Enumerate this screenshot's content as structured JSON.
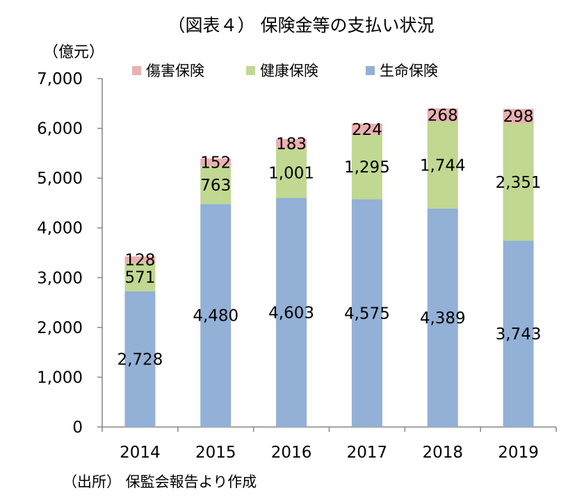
{
  "chart_data": {
    "type": "bar",
    "stacked": true,
    "title": "（図表４） 保険金等の支払い状況",
    "ylabel": "（億元）",
    "source": "（出所） 保監会報告より作成",
    "categories": [
      "2014",
      "2015",
      "2016",
      "2017",
      "2018",
      "2019"
    ],
    "ylim": [
      0,
      7000
    ],
    "yticks": [
      0,
      1000,
      2000,
      3000,
      4000,
      5000,
      6000,
      7000
    ],
    "ytick_labels": [
      "0",
      "1,000",
      "2,000",
      "3,000",
      "4,000",
      "5,000",
      "6,000",
      "7,000"
    ],
    "grid": false,
    "legend_position": "top",
    "series": [
      {
        "name": "生命保険",
        "color": "#93B0D6",
        "values": [
          2728,
          4480,
          4603,
          4575,
          4389,
          3743
        ],
        "labels": [
          "2,728",
          "4,480",
          "4,603",
          "4,575",
          "4,389",
          "3,743"
        ]
      },
      {
        "name": "健康保険",
        "color": "#C0D891",
        "values": [
          571,
          763,
          1001,
          1295,
          1744,
          2351
        ],
        "labels": [
          "571",
          "763",
          "1,001",
          "1,295",
          "1,744",
          "2,351"
        ]
      },
      {
        "name": "傷害保険",
        "color": "#E9B1B0",
        "values": [
          128,
          152,
          183,
          224,
          268,
          298
        ],
        "labels": [
          "128",
          "152",
          "183",
          "224",
          "268",
          "298"
        ]
      }
    ],
    "legend_order": [
      "傷害保険",
      "健康保険",
      "生命保険"
    ]
  }
}
